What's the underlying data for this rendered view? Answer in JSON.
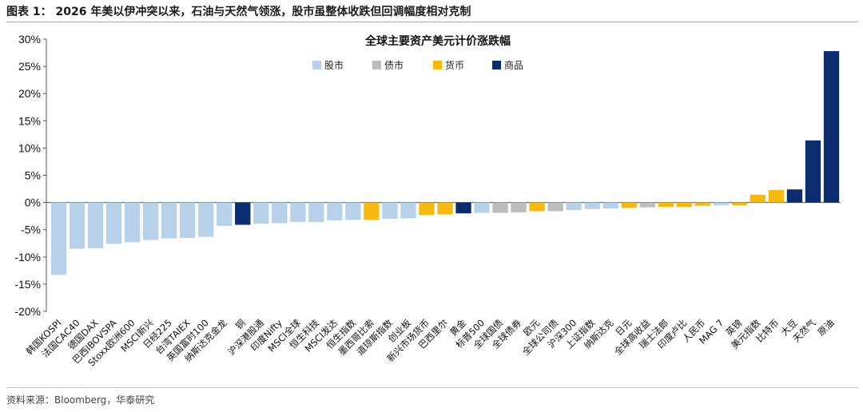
{
  "figure_title": "图表 1：  2026 年美以伊冲突以来，石油与天然气领涨，股市虽整体收跌但回调幅度相对克制",
  "source": "资料来源：Bloomberg，华泰研究",
  "chart_data": {
    "type": "bar",
    "title": "全球主要资产美元计价涨跌幅",
    "xlabel": "",
    "ylabel": "",
    "ylim": [
      -20,
      30
    ],
    "yticks": [
      -20,
      -15,
      -10,
      -5,
      0,
      5,
      10,
      15,
      20,
      25,
      30
    ],
    "ytick_labels": [
      "-20%",
      "-15%",
      "-10%",
      "-5%",
      "0%",
      "5%",
      "10%",
      "15%",
      "20%",
      "25%",
      "30%"
    ],
    "grid": false,
    "legend_position": "top-center",
    "legend": [
      {
        "name": "股市",
        "color": "#b8d1ea"
      },
      {
        "name": "债市",
        "color": "#bcbcbc"
      },
      {
        "name": "货币",
        "color": "#f6b911"
      },
      {
        "name": "商品",
        "color": "#0b2c6e"
      }
    ],
    "categories": [
      "韩国KOSPI",
      "法国CAC40",
      "德国DAX",
      "巴西IBOVSPA",
      "Stoxx欧洲600",
      "MSCI新兴",
      "日经225",
      "台湾TAIEX",
      "英国富时100",
      "纳斯达克金龙",
      "铜",
      "沪深港股通",
      "印度Nifty",
      "MSCI全球",
      "恒生科技",
      "MSCI发达",
      "恒生指数",
      "墨西哥比索",
      "道琼斯指数",
      "创业板",
      "新兴市场货币",
      "巴西里尔",
      "黄金",
      "标普500",
      "全球国债",
      "全球债券",
      "欧元",
      "全球公司债",
      "沪深300",
      "上证指数",
      "纳斯达克",
      "日元",
      "全球高收益",
      "瑞士法郎",
      "印度卢比",
      "人民币",
      "MAG 7",
      "英镑",
      "美元指数",
      "比特币",
      "大豆",
      "天然气",
      "原油"
    ],
    "values": [
      -13.3,
      -8.5,
      -8.4,
      -7.6,
      -7.3,
      -6.9,
      -6.6,
      -6.5,
      -6.3,
      -4.3,
      -4.1,
      -3.9,
      -3.8,
      -3.6,
      -3.6,
      -3.3,
      -3.2,
      -3.2,
      -3.0,
      -2.9,
      -2.3,
      -2.2,
      -2.0,
      -1.9,
      -1.9,
      -1.8,
      -1.6,
      -1.6,
      -1.4,
      -1.2,
      -1.1,
      -1.0,
      -0.9,
      -0.8,
      -0.8,
      -0.6,
      -0.5,
      -0.5,
      1.4,
      2.3,
      2.4,
      11.4,
      27.8
    ],
    "asset_class": [
      "股市",
      "股市",
      "股市",
      "股市",
      "股市",
      "股市",
      "股市",
      "股市",
      "股市",
      "股市",
      "商品",
      "股市",
      "股市",
      "股市",
      "股市",
      "股市",
      "股市",
      "货币",
      "股市",
      "股市",
      "货币",
      "货币",
      "商品",
      "股市",
      "债市",
      "债市",
      "货币",
      "债市",
      "股市",
      "股市",
      "股市",
      "货币",
      "债市",
      "货币",
      "货币",
      "货币",
      "股市",
      "货币",
      "货币",
      "货币",
      "商品",
      "商品",
      "商品"
    ]
  }
}
